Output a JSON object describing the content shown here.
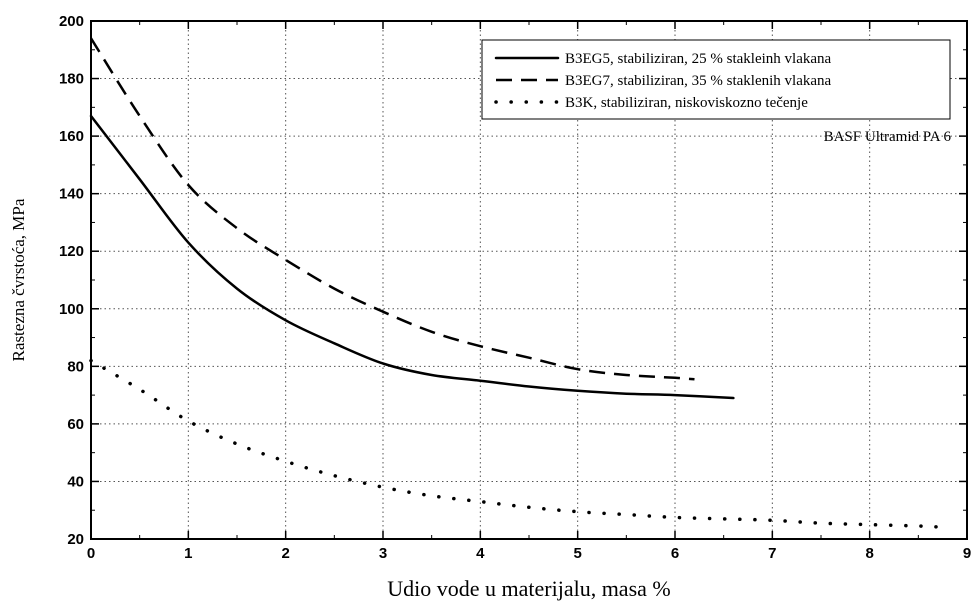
{
  "chart_data": {
    "type": "line",
    "xlabel": "Udio vode u materijalu, masa %",
    "ylabel": "Rastezna čvrstoća, MPa",
    "xlim": [
      0,
      9
    ],
    "ylim": [
      20,
      200
    ],
    "xticks": [
      0,
      1,
      2,
      3,
      4,
      5,
      6,
      7,
      8,
      9
    ],
    "yticks": [
      20,
      40,
      60,
      80,
      100,
      120,
      140,
      160,
      180,
      200
    ],
    "grid": true,
    "legend_position": "top-right",
    "annotation": "BASF Ultramid PA 6",
    "series": [
      {
        "name": "B3EG5, stabiliziran, 25 % stakleinh vlakana",
        "style": "solid",
        "x": [
          0,
          0.5,
          1,
          1.5,
          2,
          2.5,
          3,
          3.5,
          4,
          4.5,
          5,
          5.5,
          6,
          6.6
        ],
        "y": [
          167,
          145,
          123,
          107,
          96,
          88,
          81,
          77,
          75,
          73,
          71.5,
          70.5,
          70,
          69
        ]
      },
      {
        "name": "B3EG7, stabiliziran, 35 % staklenih vlakana",
        "style": "dashed",
        "x": [
          0,
          0.5,
          1,
          1.5,
          2,
          2.5,
          3,
          3.5,
          4,
          4.5,
          5,
          5.5,
          6,
          6.2
        ],
        "y": [
          194,
          167,
          143,
          128,
          117,
          107,
          99,
          92,
          87,
          83,
          79,
          77,
          76,
          75.5
        ]
      },
      {
        "name": "B3K, stabiliziran, niskoviskozno tečenje",
        "style": "dotted",
        "x": [
          0,
          0.5,
          1,
          1.5,
          2,
          2.5,
          3,
          3.5,
          4,
          4.5,
          5,
          5.5,
          6,
          6.5,
          7,
          7.5,
          8,
          8.5,
          8.8
        ],
        "y": [
          82,
          72,
          61,
          53,
          47,
          42,
          38,
          35,
          33,
          31,
          29.5,
          28.5,
          27.5,
          27,
          26.5,
          25.5,
          25,
          24.5,
          24
        ]
      }
    ]
  }
}
